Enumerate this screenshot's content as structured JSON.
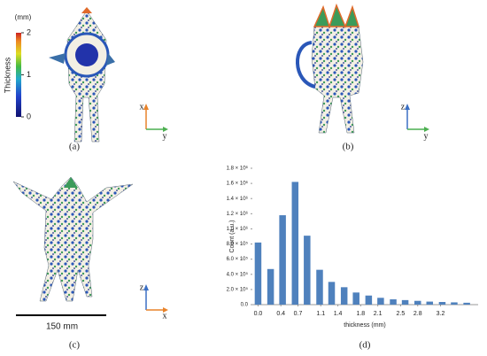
{
  "panels": {
    "a": {
      "label": "(a)",
      "axis_labels": [
        "x",
        "y"
      ]
    },
    "b": {
      "label": "(b)",
      "axis_labels": [
        "z",
        "y"
      ]
    },
    "c": {
      "label": "(c)",
      "axis_labels": [
        "z",
        "x"
      ],
      "scale_bar": "150 mm"
    },
    "d": {
      "label": "(d)"
    }
  },
  "colorbar": {
    "label": "Thickness",
    "unit": "(mm)",
    "lim": [
      0,
      2
    ],
    "ticks": [
      0,
      1,
      2
    ]
  },
  "chart_data": {
    "type": "bar",
    "x_label": "thickness (mm)",
    "y_label": "Count (a.u.)",
    "x": [
      0,
      0.22,
      0.43,
      0.65,
      0.86,
      1.08,
      1.29,
      1.51,
      1.72,
      1.94,
      2.15,
      2.37,
      2.58,
      2.8,
      3.01,
      3.23,
      3.44,
      3.66
    ],
    "values": [
      820000,
      470000,
      1180000,
      1620000,
      910000,
      460000,
      300000,
      230000,
      160000,
      120000,
      90000,
      70000,
      60000,
      50000,
      40000,
      35000,
      30000,
      25000
    ],
    "color": "#4f81bd",
    "xlim": [
      -0.1,
      3.86
    ],
    "xticks": [
      {
        "value": 0,
        "label": "0.0"
      },
      0.4,
      0.7,
      1.1,
      1.4,
      1.8,
      2.1,
      2.5,
      2.8,
      3.2
    ],
    "ylim": [
      0,
      1800000
    ],
    "yticks": [
      {
        "value": 0,
        "label": "0.0"
      },
      {
        "value": 200000,
        "label": "2.0 × 10⁵"
      },
      {
        "value": 400000,
        "label": "4.0 × 10⁵"
      },
      {
        "value": 600000,
        "label": "6.0 × 10⁵"
      },
      {
        "value": 800000,
        "label": "8.0 × 10⁵"
      },
      {
        "value": 1000000,
        "label": "1.0 × 10⁶"
      },
      {
        "value": 1200000,
        "label": "1.2 × 10⁶"
      },
      {
        "value": 1400000,
        "label": "1.4 × 10⁶"
      },
      {
        "value": 1600000,
        "label": "1.6 × 10⁶"
      },
      {
        "value": 1800000,
        "label": "1.8 × 10⁶"
      }
    ]
  }
}
